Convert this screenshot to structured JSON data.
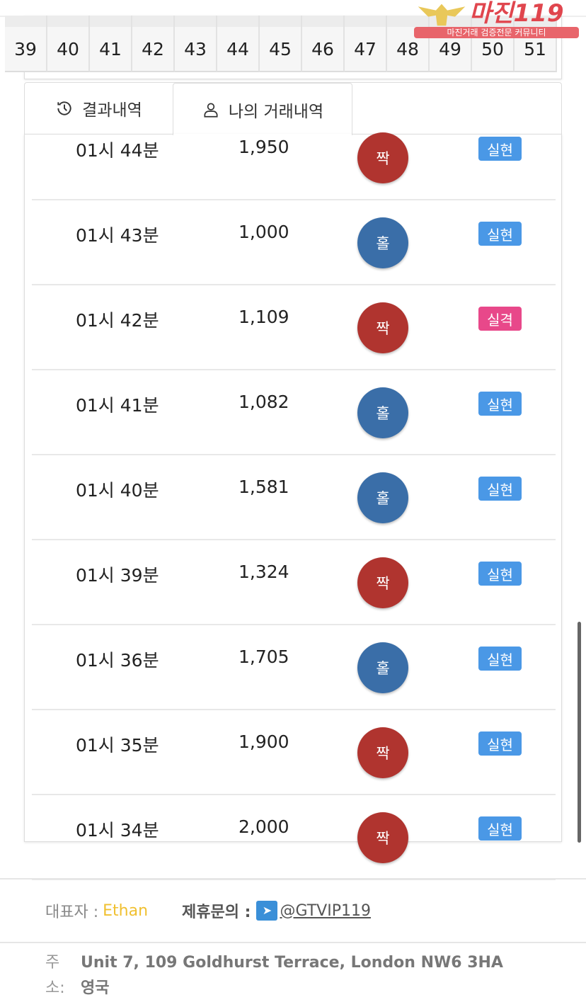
{
  "logo": {
    "title": "마진119",
    "subtitle": "마진거래 검증전문 커뮤니티"
  },
  "number_strip": [
    "39",
    "40",
    "41",
    "42",
    "43",
    "44",
    "45",
    "46",
    "47",
    "48",
    "49",
    "50",
    "51"
  ],
  "tabs": [
    {
      "label": "결과내역",
      "icon": "history-icon",
      "active": false
    },
    {
      "label": "나의 거래내역",
      "icon": "user-icon",
      "active": true
    }
  ],
  "rows": [
    {
      "time": "01시 44분",
      "amount": "1,950",
      "pick": "짝",
      "status": "실현"
    },
    {
      "time": "01시 43분",
      "amount": "1,000",
      "pick": "홀",
      "status": "실현"
    },
    {
      "time": "01시 42분",
      "amount": "1,109",
      "pick": "짝",
      "status": "실격"
    },
    {
      "time": "01시 41분",
      "amount": "1,082",
      "pick": "홀",
      "status": "실현"
    },
    {
      "time": "01시 40분",
      "amount": "1,581",
      "pick": "홀",
      "status": "실현"
    },
    {
      "time": "01시 39분",
      "amount": "1,324",
      "pick": "짝",
      "status": "실현"
    },
    {
      "time": "01시 36분",
      "amount": "1,705",
      "pick": "홀",
      "status": "실현"
    },
    {
      "time": "01시 35분",
      "amount": "1,900",
      "pick": "짝",
      "status": "실현"
    },
    {
      "time": "01시 34분",
      "amount": "2,000",
      "pick": "짝",
      "status": "실현"
    }
  ],
  "colors": {
    "even": "#b0342f",
    "odd": "#3a6ea8",
    "success": "#4a98e6",
    "fail": "#e8488a",
    "accent_name": "#f0c030"
  },
  "footer": {
    "rep_label": "대표자 :",
    "rep_name": "Ethan",
    "contact_label": "제휴문의 :",
    "contact_handle": "@GTVIP119",
    "address_label": "주소:",
    "address": "Unit 7, 109 Goldhurst Terrace, London NW6 3HA 영국"
  }
}
